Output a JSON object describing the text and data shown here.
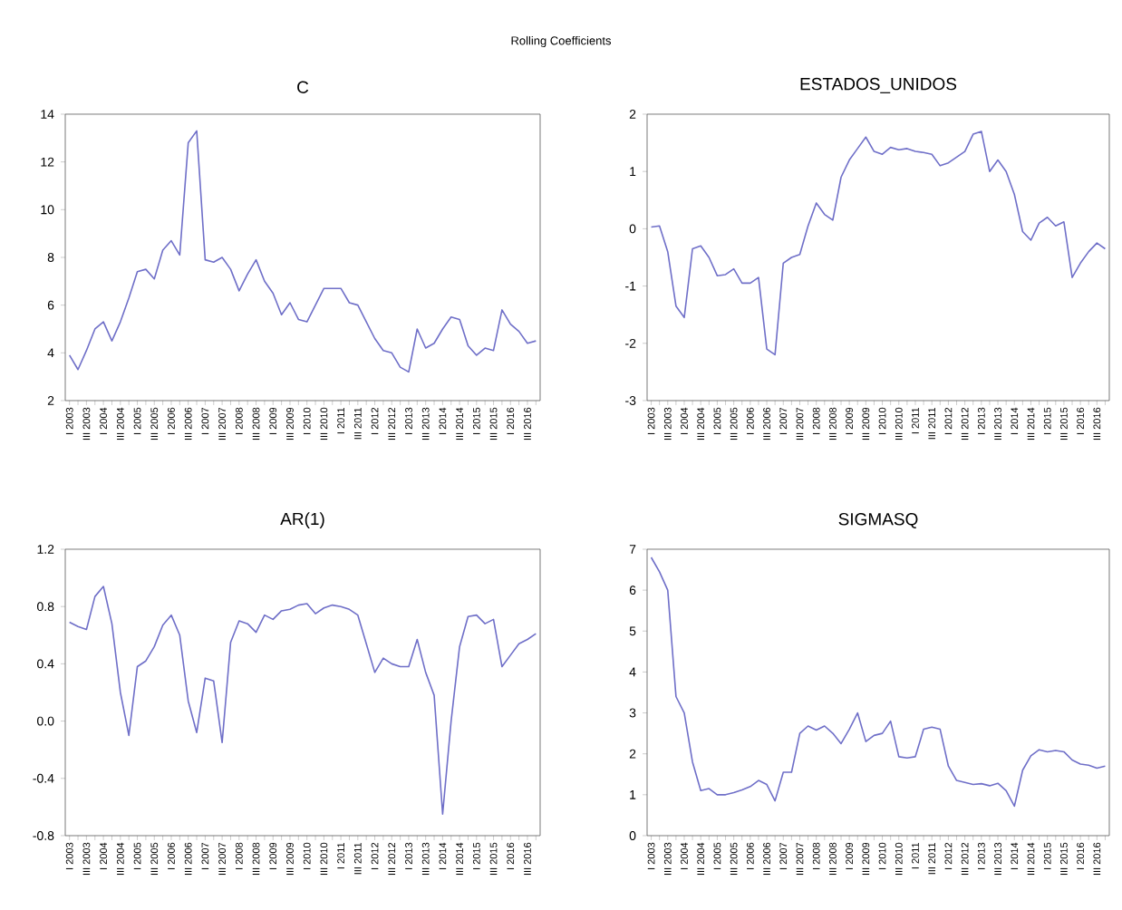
{
  "chart_data": [
    {
      "type": "line",
      "title": "C",
      "annotations": [
        "Rolling Coefficients"
      ],
      "categories": [
        "I 2003",
        null,
        "III 2003",
        null,
        "I 2004",
        null,
        "III 2004",
        null,
        "I 2005",
        null,
        "III 2005",
        null,
        "I 2006",
        null,
        "III 2006",
        null,
        "I 2007",
        null,
        "III 2007",
        null,
        "I 2008",
        null,
        "III 2008",
        null,
        "I 2009",
        null,
        "III 2009",
        null,
        "I 2010",
        null,
        "III 2010",
        null,
        "I 2011",
        null,
        "III 2011",
        null,
        "I 2012",
        null,
        "III 2012",
        null,
        "I 2013",
        null,
        "III 2013",
        null,
        "I 2014",
        null,
        "III 2014",
        null,
        "I 2015",
        null,
        "III 2015",
        null,
        "I 2016",
        null,
        "III 2016",
        null
      ],
      "values": [
        3.9,
        3.3,
        4.1,
        5.0,
        5.3,
        4.5,
        5.3,
        6.3,
        7.4,
        7.5,
        7.1,
        8.3,
        8.7,
        8.1,
        12.8,
        13.3,
        7.9,
        7.8,
        8.0,
        7.5,
        6.6,
        7.3,
        7.9,
        7.0,
        6.5,
        5.6,
        6.1,
        5.4,
        5.3,
        6.0,
        6.7,
        6.7,
        6.7,
        6.1,
        6.0,
        5.3,
        4.6,
        4.1,
        4.0,
        3.4,
        3.2,
        5.0,
        4.2,
        4.4,
        5.0,
        5.5,
        5.4,
        4.3,
        3.9,
        4.2,
        4.1,
        5.8,
        5.2,
        4.9,
        4.4,
        4.5
      ],
      "color": "#6f6fc8",
      "ylim": [
        2,
        14
      ],
      "yticks": [
        2,
        4,
        6,
        8,
        10,
        12,
        14
      ]
    },
    {
      "type": "line",
      "title": "ESTADOS_UNIDOS",
      "categories": [
        "I 2003",
        null,
        "III 2003",
        null,
        "I 2004",
        null,
        "III 2004",
        null,
        "I 2005",
        null,
        "III 2005",
        null,
        "I 2006",
        null,
        "III 2006",
        null,
        "I 2007",
        null,
        "III 2007",
        null,
        "I 2008",
        null,
        "III 2008",
        null,
        "I 2009",
        null,
        "III 2009",
        null,
        "I 2010",
        null,
        "III 2010",
        null,
        "I 2011",
        null,
        "III 2011",
        null,
        "I 2012",
        null,
        "III 2012",
        null,
        "I 2013",
        null,
        "III 2013",
        null,
        "I 2014",
        null,
        "III 2014",
        null,
        "I 2015",
        null,
        "III 2015",
        null,
        "I 2016",
        null,
        "III 2016",
        null
      ],
      "values": [
        0.03,
        0.05,
        -0.4,
        -1.35,
        -1.55,
        -0.35,
        -0.3,
        -0.5,
        -0.82,
        -0.8,
        -0.7,
        -0.95,
        -0.95,
        -0.85,
        -2.1,
        -2.2,
        -0.6,
        -0.5,
        -0.45,
        0.05,
        0.45,
        0.25,
        0.15,
        0.9,
        1.2,
        1.4,
        1.6,
        1.35,
        1.3,
        1.42,
        1.38,
        1.4,
        1.35,
        1.33,
        1.3,
        1.1,
        1.15,
        1.25,
        1.35,
        1.65,
        1.7,
        1.0,
        1.2,
        1.0,
        0.6,
        -0.05,
        -0.2,
        0.1,
        0.2,
        0.05,
        0.12,
        -0.85,
        -0.6,
        -0.4,
        -0.25,
        -0.35
      ],
      "color": "#6f6fc8",
      "ylim": [
        -3,
        2
      ],
      "yticks": [
        -3,
        -2,
        -1,
        0,
        1,
        2
      ]
    },
    {
      "type": "line",
      "title": "AR(1)",
      "categories": [
        "I 2003",
        null,
        "III 2003",
        null,
        "I 2004",
        null,
        "III 2004",
        null,
        "I 2005",
        null,
        "III 2005",
        null,
        "I 2006",
        null,
        "III 2006",
        null,
        "I 2007",
        null,
        "III 2007",
        null,
        "I 2008",
        null,
        "III 2008",
        null,
        "I 2009",
        null,
        "III 2009",
        null,
        "I 2010",
        null,
        "III 2010",
        null,
        "I 2011",
        null,
        "III 2011",
        null,
        "I 2012",
        null,
        "III 2012",
        null,
        "I 2013",
        null,
        "III 2013",
        null,
        "I 2014",
        null,
        "III 2014",
        null,
        "I 2015",
        null,
        "III 2015",
        null,
        "I 2016",
        null,
        "III 2016",
        null
      ],
      "values": [
        0.69,
        0.66,
        0.64,
        0.87,
        0.94,
        0.68,
        0.2,
        -0.1,
        0.38,
        0.42,
        0.52,
        0.67,
        0.74,
        0.6,
        0.14,
        -0.08,
        0.3,
        0.28,
        -0.15,
        0.55,
        0.7,
        0.68,
        0.62,
        0.74,
        0.71,
        0.77,
        0.78,
        0.81,
        0.82,
        0.75,
        0.79,
        0.81,
        0.8,
        0.78,
        0.74,
        0.54,
        0.34,
        0.44,
        0.4,
        0.38,
        0.38,
        0.57,
        0.34,
        0.18,
        -0.65,
        0.0,
        0.52,
        0.73,
        0.74,
        0.68,
        0.71,
        0.38,
        0.46,
        0.54,
        0.57,
        0.61
      ],
      "color": "#6f6fc8",
      "ylim": [
        -0.8,
        1.2
      ],
      "yticks": [
        -0.8,
        -0.4,
        {
          "value": 0,
          "label": "0.0"
        },
        0.4,
        0.8,
        1.2
      ]
    },
    {
      "type": "line",
      "title": "SIGMASQ",
      "categories": [
        "I 2003",
        null,
        "III 2003",
        null,
        "I 2004",
        null,
        "III 2004",
        null,
        "I 2005",
        null,
        "III 2005",
        null,
        "I 2006",
        null,
        "III 2006",
        null,
        "I 2007",
        null,
        "III 2007",
        null,
        "I 2008",
        null,
        "III 2008",
        null,
        "I 2009",
        null,
        "III 2009",
        null,
        "I 2010",
        null,
        "III 2010",
        null,
        "I 2011",
        null,
        "III 2011",
        null,
        "I 2012",
        null,
        "III 2012",
        null,
        "I 2013",
        null,
        "III 2013",
        null,
        "I 2014",
        null,
        "III 2014",
        null,
        "I 2015",
        null,
        "III 2015",
        null,
        "I 2016",
        null,
        "III 2016",
        null
      ],
      "values": [
        6.8,
        6.45,
        6.0,
        3.4,
        3.0,
        1.8,
        1.1,
        1.15,
        1.0,
        1.0,
        1.05,
        1.12,
        1.2,
        1.35,
        1.25,
        0.85,
        1.55,
        1.55,
        2.5,
        2.68,
        2.58,
        2.68,
        2.5,
        2.25,
        2.6,
        3.0,
        2.3,
        2.45,
        2.5,
        2.8,
        1.93,
        1.9,
        1.93,
        2.6,
        2.65,
        2.6,
        1.7,
        1.35,
        1.3,
        1.25,
        1.27,
        1.22,
        1.28,
        1.1,
        0.72,
        1.6,
        1.95,
        2.1,
        2.05,
        2.08,
        2.05,
        1.85,
        1.75,
        1.72,
        1.65,
        1.7
      ],
      "color": "#6f6fc8",
      "ylim": [
        0,
        7
      ],
      "yticks": [
        0,
        1,
        2,
        3,
        4,
        5,
        6,
        7
      ]
    }
  ]
}
